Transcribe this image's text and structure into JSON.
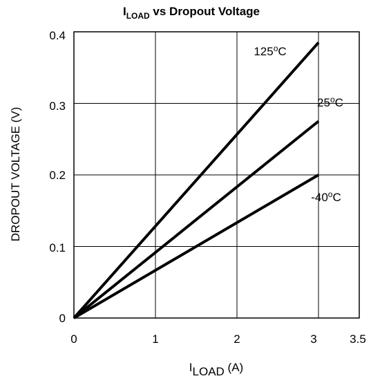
{
  "chart_data": {
    "type": "line",
    "title_main": "I",
    "title_sub": "LOAD",
    "title_rest": " vs Dropout Voltage",
    "xlabel_main": "I",
    "xlabel_sub": "LOAD",
    "xlabel_rest": " (A)",
    "ylabel": "DROPOUT VOLTAGE (V)",
    "xlim": [
      0,
      3.5
    ],
    "ylim": [
      0,
      0.4
    ],
    "x_ticks": [
      "0",
      "1",
      "2",
      "3",
      "3.5"
    ],
    "y_ticks": [
      "0",
      "0.1",
      "0.2",
      "0.3",
      "0.4"
    ],
    "grid": true,
    "line_color": "#000000",
    "series": [
      {
        "label_main": "125",
        "label_sup": "o",
        "label_rest": "C",
        "x": [
          0,
          3
        ],
        "y": [
          0,
          0.385
        ]
      },
      {
        "label_main": "25",
        "label_sup": "o",
        "label_rest": "C",
        "x": [
          0,
          3
        ],
        "y": [
          0,
          0.275
        ]
      },
      {
        "label_main": "-40",
        "label_sup": "o",
        "label_rest": "C",
        "x": [
          0,
          3
        ],
        "y": [
          0,
          0.2
        ]
      }
    ]
  }
}
